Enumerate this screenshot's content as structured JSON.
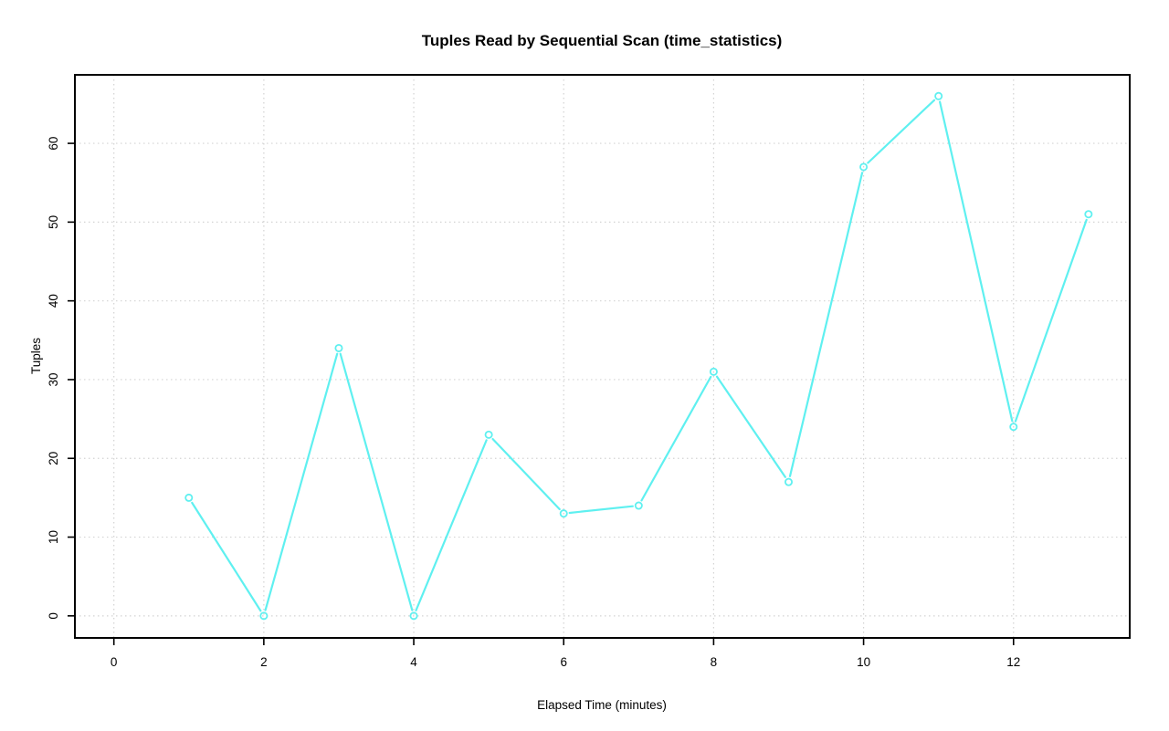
{
  "chart_data": {
    "type": "line",
    "title": "Tuples Read by Sequential Scan (time_statistics)",
    "xlabel": "Elapsed Time (minutes)",
    "ylabel": "Tuples",
    "x": [
      1,
      2,
      3,
      4,
      5,
      6,
      7,
      8,
      9,
      10,
      11,
      12,
      13
    ],
    "values": [
      15,
      0,
      34,
      0,
      23,
      13,
      14,
      31,
      17,
      57,
      66,
      24,
      51
    ],
    "series_name": "Tuples",
    "xticks": [
      0,
      2,
      4,
      6,
      8,
      10,
      12
    ],
    "yticks": [
      0,
      10,
      20,
      30,
      40,
      50,
      60
    ],
    "xlim": [
      -0.52,
      13.55
    ],
    "ylim": [
      -2.8,
      68.7
    ],
    "marker": "open-circle",
    "line_style": "segments-with-gaps",
    "grid": "dotted",
    "legend": "none",
    "series_color": "#5FF0F0",
    "grid_color": "#D3D3D3",
    "axis_color": "#000000",
    "background_color": "#FFFFFF"
  }
}
